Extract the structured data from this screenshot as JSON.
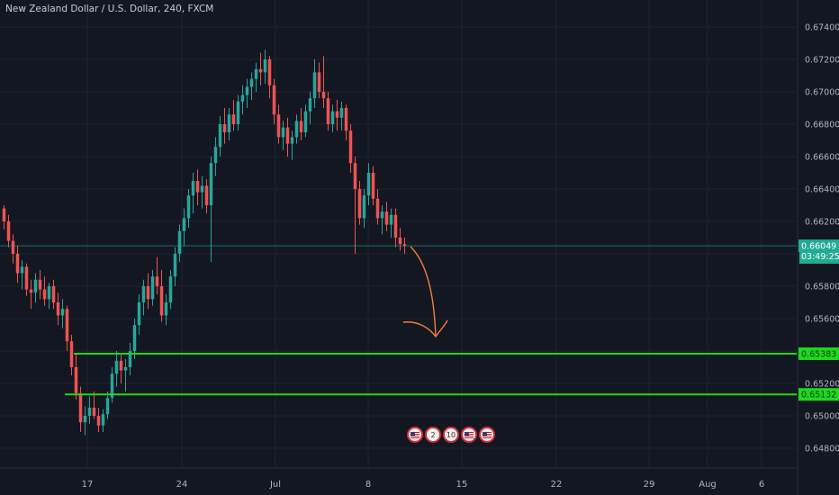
{
  "header": {
    "title": "New Zealand Dollar / U.S. Dollar, 240, FXCM"
  },
  "price_axis": {
    "labels": [
      "0.67400",
      "0.67200",
      "0.67000",
      "0.66800",
      "0.66600",
      "0.66400",
      "0.66200",
      "0.66000",
      "0.65800",
      "0.65600",
      "0.65400",
      "0.65200",
      "0.65000",
      "0.64800"
    ]
  },
  "time_axis": {
    "labels": [
      "17",
      "24",
      "Jul",
      "8",
      "15",
      "22",
      "29",
      "Aug",
      "6"
    ]
  },
  "current_price": {
    "label": "0.66049",
    "value": 0.66049,
    "countdown": "03:49:25",
    "color": "#22ab94"
  },
  "levels": [
    {
      "label": "0.65383",
      "value": 0.65383,
      "color": "#1fd81f"
    },
    {
      "label": "0.65132",
      "value": 0.65132,
      "color": "#1fd81f"
    }
  ],
  "events": [
    {
      "type": "flag-icon",
      "text": ""
    },
    {
      "type": "badge",
      "text": "2"
    },
    {
      "type": "badge",
      "text": "10"
    },
    {
      "type": "flag-icon",
      "text": ""
    },
    {
      "type": "flag-icon",
      "text": ""
    }
  ],
  "colors": {
    "background": "#131722",
    "up": "#26a69a",
    "down": "#ef5350",
    "grid": "#1f2332",
    "arrow": "#f57c3a",
    "axis_text": "#b2b5be"
  },
  "chart_data": {
    "type": "candlestick",
    "title": "New Zealand Dollar / U.S. Dollar, 240, FXCM",
    "ylim": [
      0.647,
      0.675
    ],
    "x_ticks": [
      "17",
      "24",
      "Jul",
      "8",
      "15",
      "22",
      "29",
      "Aug",
      "6"
    ],
    "series": [
      {
        "ohlc": [
          [
            0.6628,
            0.663,
            0.6615,
            0.662
          ],
          [
            0.662,
            0.6624,
            0.6604,
            0.6608
          ],
          [
            0.6608,
            0.6612,
            0.6594,
            0.66
          ],
          [
            0.66,
            0.6605,
            0.6582,
            0.6588
          ],
          [
            0.6588,
            0.6596,
            0.6578,
            0.6592
          ],
          [
            0.6592,
            0.6594,
            0.6574,
            0.6578
          ],
          [
            0.6578,
            0.6584,
            0.6566,
            0.6576
          ],
          [
            0.6576,
            0.6588,
            0.657,
            0.6584
          ],
          [
            0.6584,
            0.659,
            0.6572,
            0.6578
          ],
          [
            0.6578,
            0.6586,
            0.6568,
            0.6572
          ],
          [
            0.6572,
            0.6582,
            0.6566,
            0.658
          ],
          [
            0.658,
            0.6584,
            0.6566,
            0.657
          ],
          [
            0.657,
            0.6576,
            0.6556,
            0.6562
          ],
          [
            0.6562,
            0.6572,
            0.6554,
            0.6566
          ],
          [
            0.6566,
            0.6568,
            0.654,
            0.6546
          ],
          [
            0.6546,
            0.655,
            0.6525,
            0.653
          ],
          [
            0.653,
            0.6538,
            0.651,
            0.6514
          ],
          [
            0.6514,
            0.6518,
            0.649,
            0.6496
          ],
          [
            0.6496,
            0.6506,
            0.6488,
            0.65
          ],
          [
            0.65,
            0.6512,
            0.6495,
            0.6505
          ],
          [
            0.6505,
            0.6515,
            0.6498,
            0.65
          ],
          [
            0.65,
            0.6505,
            0.649,
            0.6494
          ],
          [
            0.6494,
            0.6504,
            0.649,
            0.6501
          ],
          [
            0.6501,
            0.6515,
            0.6498,
            0.6511
          ],
          [
            0.6511,
            0.653,
            0.6508,
            0.6526
          ],
          [
            0.6526,
            0.654,
            0.6518,
            0.6534
          ],
          [
            0.6534,
            0.6538,
            0.652,
            0.6528
          ],
          [
            0.6528,
            0.6535,
            0.6515,
            0.653
          ],
          [
            0.653,
            0.6545,
            0.6525,
            0.654
          ],
          [
            0.654,
            0.656,
            0.6535,
            0.6556
          ],
          [
            0.6556,
            0.6575,
            0.655,
            0.657
          ],
          [
            0.657,
            0.6584,
            0.6562,
            0.658
          ],
          [
            0.658,
            0.6588,
            0.6566,
            0.6572
          ],
          [
            0.6572,
            0.659,
            0.6568,
            0.6586
          ],
          [
            0.6586,
            0.6598,
            0.6575,
            0.658
          ],
          [
            0.658,
            0.659,
            0.6558,
            0.6562
          ],
          [
            0.6562,
            0.6575,
            0.6556,
            0.657
          ],
          [
            0.657,
            0.659,
            0.6566,
            0.6586
          ],
          [
            0.6586,
            0.6604,
            0.658,
            0.66
          ],
          [
            0.66,
            0.6618,
            0.6595,
            0.6614
          ],
          [
            0.6614,
            0.6628,
            0.6605,
            0.6622
          ],
          [
            0.6622,
            0.664,
            0.6616,
            0.6636
          ],
          [
            0.6636,
            0.665,
            0.6625,
            0.6645
          ],
          [
            0.6645,
            0.6652,
            0.663,
            0.6638
          ],
          [
            0.6638,
            0.6648,
            0.6628,
            0.6642
          ],
          [
            0.6642,
            0.6646,
            0.6625,
            0.663
          ],
          [
            0.663,
            0.666,
            0.6595,
            0.6656
          ],
          [
            0.6656,
            0.6672,
            0.6648,
            0.6666
          ],
          [
            0.6666,
            0.6685,
            0.666,
            0.668
          ],
          [
            0.668,
            0.669,
            0.6668,
            0.6675
          ],
          [
            0.6675,
            0.669,
            0.667,
            0.6686
          ],
          [
            0.6686,
            0.6695,
            0.6676,
            0.668
          ],
          [
            0.668,
            0.6698,
            0.6676,
            0.6694
          ],
          [
            0.6694,
            0.6704,
            0.6686,
            0.6698
          ],
          [
            0.6698,
            0.6708,
            0.669,
            0.6703
          ],
          [
            0.6703,
            0.6712,
            0.6695,
            0.6708
          ],
          [
            0.6708,
            0.6718,
            0.67,
            0.6714
          ],
          [
            0.6714,
            0.6724,
            0.6704,
            0.6712
          ],
          [
            0.6712,
            0.6726,
            0.6705,
            0.672
          ],
          [
            0.672,
            0.6722,
            0.6696,
            0.6704
          ],
          [
            0.6704,
            0.6708,
            0.668,
            0.6686
          ],
          [
            0.6686,
            0.6692,
            0.6668,
            0.6672
          ],
          [
            0.6672,
            0.6682,
            0.6664,
            0.6678
          ],
          [
            0.6678,
            0.6684,
            0.666,
            0.6668
          ],
          [
            0.6668,
            0.6676,
            0.6658,
            0.6672
          ],
          [
            0.6672,
            0.6686,
            0.6668,
            0.6682
          ],
          [
            0.6682,
            0.669,
            0.667,
            0.6675
          ],
          [
            0.6675,
            0.6692,
            0.6672,
            0.6688
          ],
          [
            0.6688,
            0.67,
            0.668,
            0.6696
          ],
          [
            0.6696,
            0.672,
            0.669,
            0.6712
          ],
          [
            0.6712,
            0.6718,
            0.6696,
            0.67
          ],
          [
            0.67,
            0.6722,
            0.669,
            0.6696
          ],
          [
            0.6696,
            0.67,
            0.6676,
            0.668
          ],
          [
            0.668,
            0.6692,
            0.6675,
            0.6688
          ],
          [
            0.6688,
            0.6695,
            0.6676,
            0.6684
          ],
          [
            0.6684,
            0.6694,
            0.6676,
            0.669
          ],
          [
            0.669,
            0.6692,
            0.667,
            0.6676
          ],
          [
            0.6676,
            0.668,
            0.665,
            0.6656
          ],
          [
            0.6656,
            0.666,
            0.66,
            0.664
          ],
          [
            0.664,
            0.6645,
            0.6618,
            0.6622
          ],
          [
            0.6622,
            0.664,
            0.6616,
            0.6636
          ],
          [
            0.6636,
            0.6656,
            0.663,
            0.665
          ],
          [
            0.665,
            0.6654,
            0.663,
            0.6634
          ],
          [
            0.6634,
            0.664,
            0.6618,
            0.6622
          ],
          [
            0.6622,
            0.663,
            0.6612,
            0.6626
          ],
          [
            0.6626,
            0.6632,
            0.6614,
            0.6618
          ],
          [
            0.6618,
            0.6628,
            0.661,
            0.6624
          ],
          [
            0.6624,
            0.6628,
            0.6604,
            0.661
          ],
          [
            0.661,
            0.6616,
            0.6602,
            0.6606
          ],
          [
            0.6606,
            0.661,
            0.66,
            0.6605
          ]
        ]
      }
    ],
    "horizontal_lines": [
      0.66049,
      0.65383,
      0.65132
    ]
  }
}
